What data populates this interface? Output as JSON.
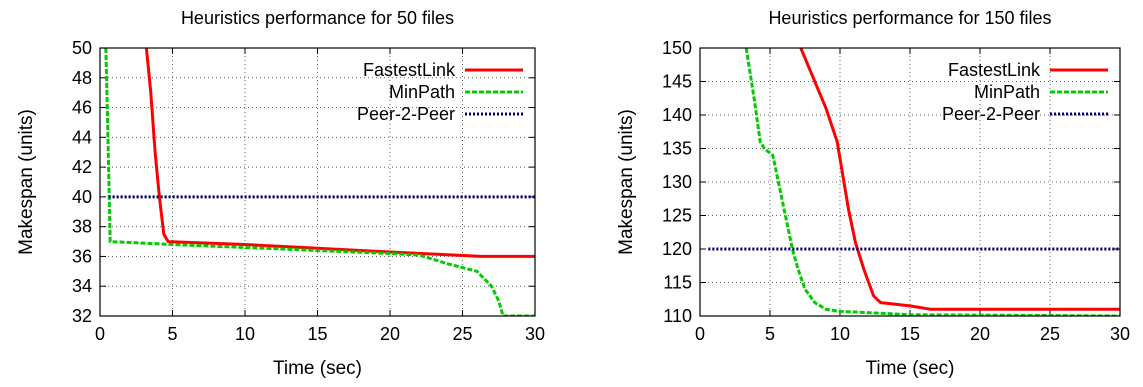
{
  "chart_data": [
    {
      "type": "line",
      "title": "Heuristics performance for 50 files",
      "xlabel": "Time (sec)",
      "ylabel": "Makespan (units)",
      "xlim": [
        0,
        30
      ],
      "ylim": [
        32,
        50
      ],
      "xticks": [
        0,
        5,
        10,
        15,
        20,
        25,
        30
      ],
      "yticks": [
        32,
        34,
        36,
        38,
        40,
        42,
        44,
        46,
        48,
        50
      ],
      "grid": true,
      "legend_position": "top-right",
      "series": [
        {
          "name": "FastestLink",
          "color": "#ff0000",
          "style": "solid",
          "x": [
            3.2,
            3.5,
            3.8,
            4.1,
            4.4,
            4.7,
            10,
            15,
            20,
            26.3,
            30
          ],
          "y": [
            50,
            47,
            43,
            40,
            37.5,
            37,
            36.8,
            36.55,
            36.3,
            36,
            36
          ]
        },
        {
          "name": "MinPath",
          "color": "#00cc00",
          "style": "dashed",
          "x": [
            0.4,
            0.5,
            0.7,
            5,
            10,
            15,
            20,
            22,
            24,
            26,
            27,
            27.5,
            27.8,
            30
          ],
          "y": [
            50,
            46,
            37,
            36.8,
            36.6,
            36.4,
            36.2,
            36.1,
            35.5,
            35,
            34,
            33,
            32,
            32
          ]
        },
        {
          "name": "Peer-2-Peer",
          "color": "#000080",
          "style": "dotted",
          "x": [
            0.6,
            30
          ],
          "y": [
            40,
            40
          ]
        }
      ]
    },
    {
      "type": "line",
      "title": "Heuristics performance for 150 files",
      "xlabel": "Time (sec)",
      "ylabel": "Makespan (units)",
      "xlim": [
        0,
        30
      ],
      "ylim": [
        110,
        150
      ],
      "xticks": [
        0,
        5,
        10,
        15,
        20,
        25,
        30
      ],
      "yticks": [
        110,
        115,
        120,
        125,
        130,
        135,
        140,
        145,
        150
      ],
      "grid": true,
      "legend_position": "top-right",
      "series": [
        {
          "name": "FastestLink",
          "color": "#ff0000",
          "style": "solid",
          "x": [
            7.2,
            8,
            9,
            9.8,
            10.2,
            10.6,
            11.1,
            11.7,
            12.4,
            12.9,
            15,
            16.5,
            30
          ],
          "y": [
            150,
            146,
            141,
            136,
            131,
            126,
            121,
            117,
            113,
            112,
            111.5,
            111,
            111
          ]
        },
        {
          "name": "MinPath",
          "color": "#00cc00",
          "style": "dashed",
          "x": [
            3.3,
            3.9,
            4.3,
            4.6,
            5.2,
            5.6,
            6.1,
            6.6,
            7,
            7.5,
            8.2,
            9,
            10,
            15,
            30
          ],
          "y": [
            150,
            142,
            136,
            135,
            134,
            130,
            125,
            120,
            117,
            114,
            112,
            111,
            110.7,
            110.2,
            110
          ]
        },
        {
          "name": "Peer-2-Peer",
          "color": "#000080",
          "style": "dotted",
          "x": [
            0.6,
            30
          ],
          "y": [
            120,
            120
          ]
        }
      ]
    }
  ]
}
